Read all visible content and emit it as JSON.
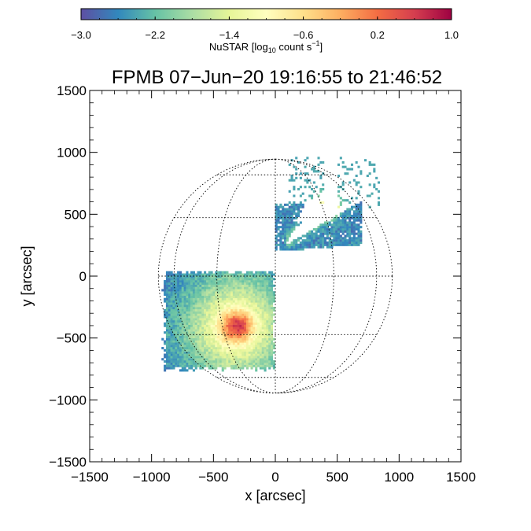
{
  "chart_data": {
    "type": "heatmap",
    "title": "FPMB 07−Jun−20 19:16:55 to 21:46:52",
    "xlabel": "x [arcsec]",
    "ylabel": "y [arcsec]",
    "xlim": [
      -1500,
      1500
    ],
    "ylim": [
      -1500,
      1500
    ],
    "xticks": [
      -1500,
      -1000,
      -500,
      0,
      500,
      1000,
      1500
    ],
    "yticks": [
      -1500,
      -1000,
      -500,
      0,
      500,
      1000,
      1500
    ],
    "xtick_labels": [
      "−1500",
      "−1000",
      "−500",
      "0",
      "500",
      "1000",
      "1500"
    ],
    "ytick_labels": [
      "−1500",
      "−1000",
      "−500",
      "0",
      "500",
      "1000",
      "1500"
    ],
    "colorbar": {
      "label_main": "NuSTAR [log",
      "label_sub": "10",
      "label_mid": " count s",
      "label_sup": "−1",
      "label_end": "]",
      "range": [
        -3.0,
        1.0
      ],
      "ticks": [
        -3.0,
        -2.2,
        -1.4,
        -0.6,
        0.2,
        1.0
      ],
      "tick_labels": [
        "−3.0",
        "−2.2",
        "−1.4",
        "−0.6",
        "0.2",
        "1.0"
      ],
      "colormap": [
        "#5e4fa2",
        "#3288bd",
        "#66c2a5",
        "#abdda4",
        "#e6f598",
        "#ffffbf",
        "#fee08b",
        "#fdae61",
        "#f46d43",
        "#d53e4f",
        "#9e0142"
      ]
    },
    "solar_disk": {
      "radius_arcsec": 945,
      "grid": "dotted heliographic grid"
    },
    "fields_of_view": [
      {
        "region": "lower-left square",
        "x_range": [
          -920,
          -5
        ],
        "y_range": [
          -770,
          40
        ],
        "peak_log_rate": 0.6,
        "peak_center": [
          -330,
          -420
        ]
      },
      {
        "region": "upper-right wedge",
        "x_range": [
          -20,
          830
        ],
        "y_range": [
          190,
          960
        ],
        "peak_log_rate": -0.6,
        "peak_center": [
          410,
          560
        ]
      }
    ]
  }
}
